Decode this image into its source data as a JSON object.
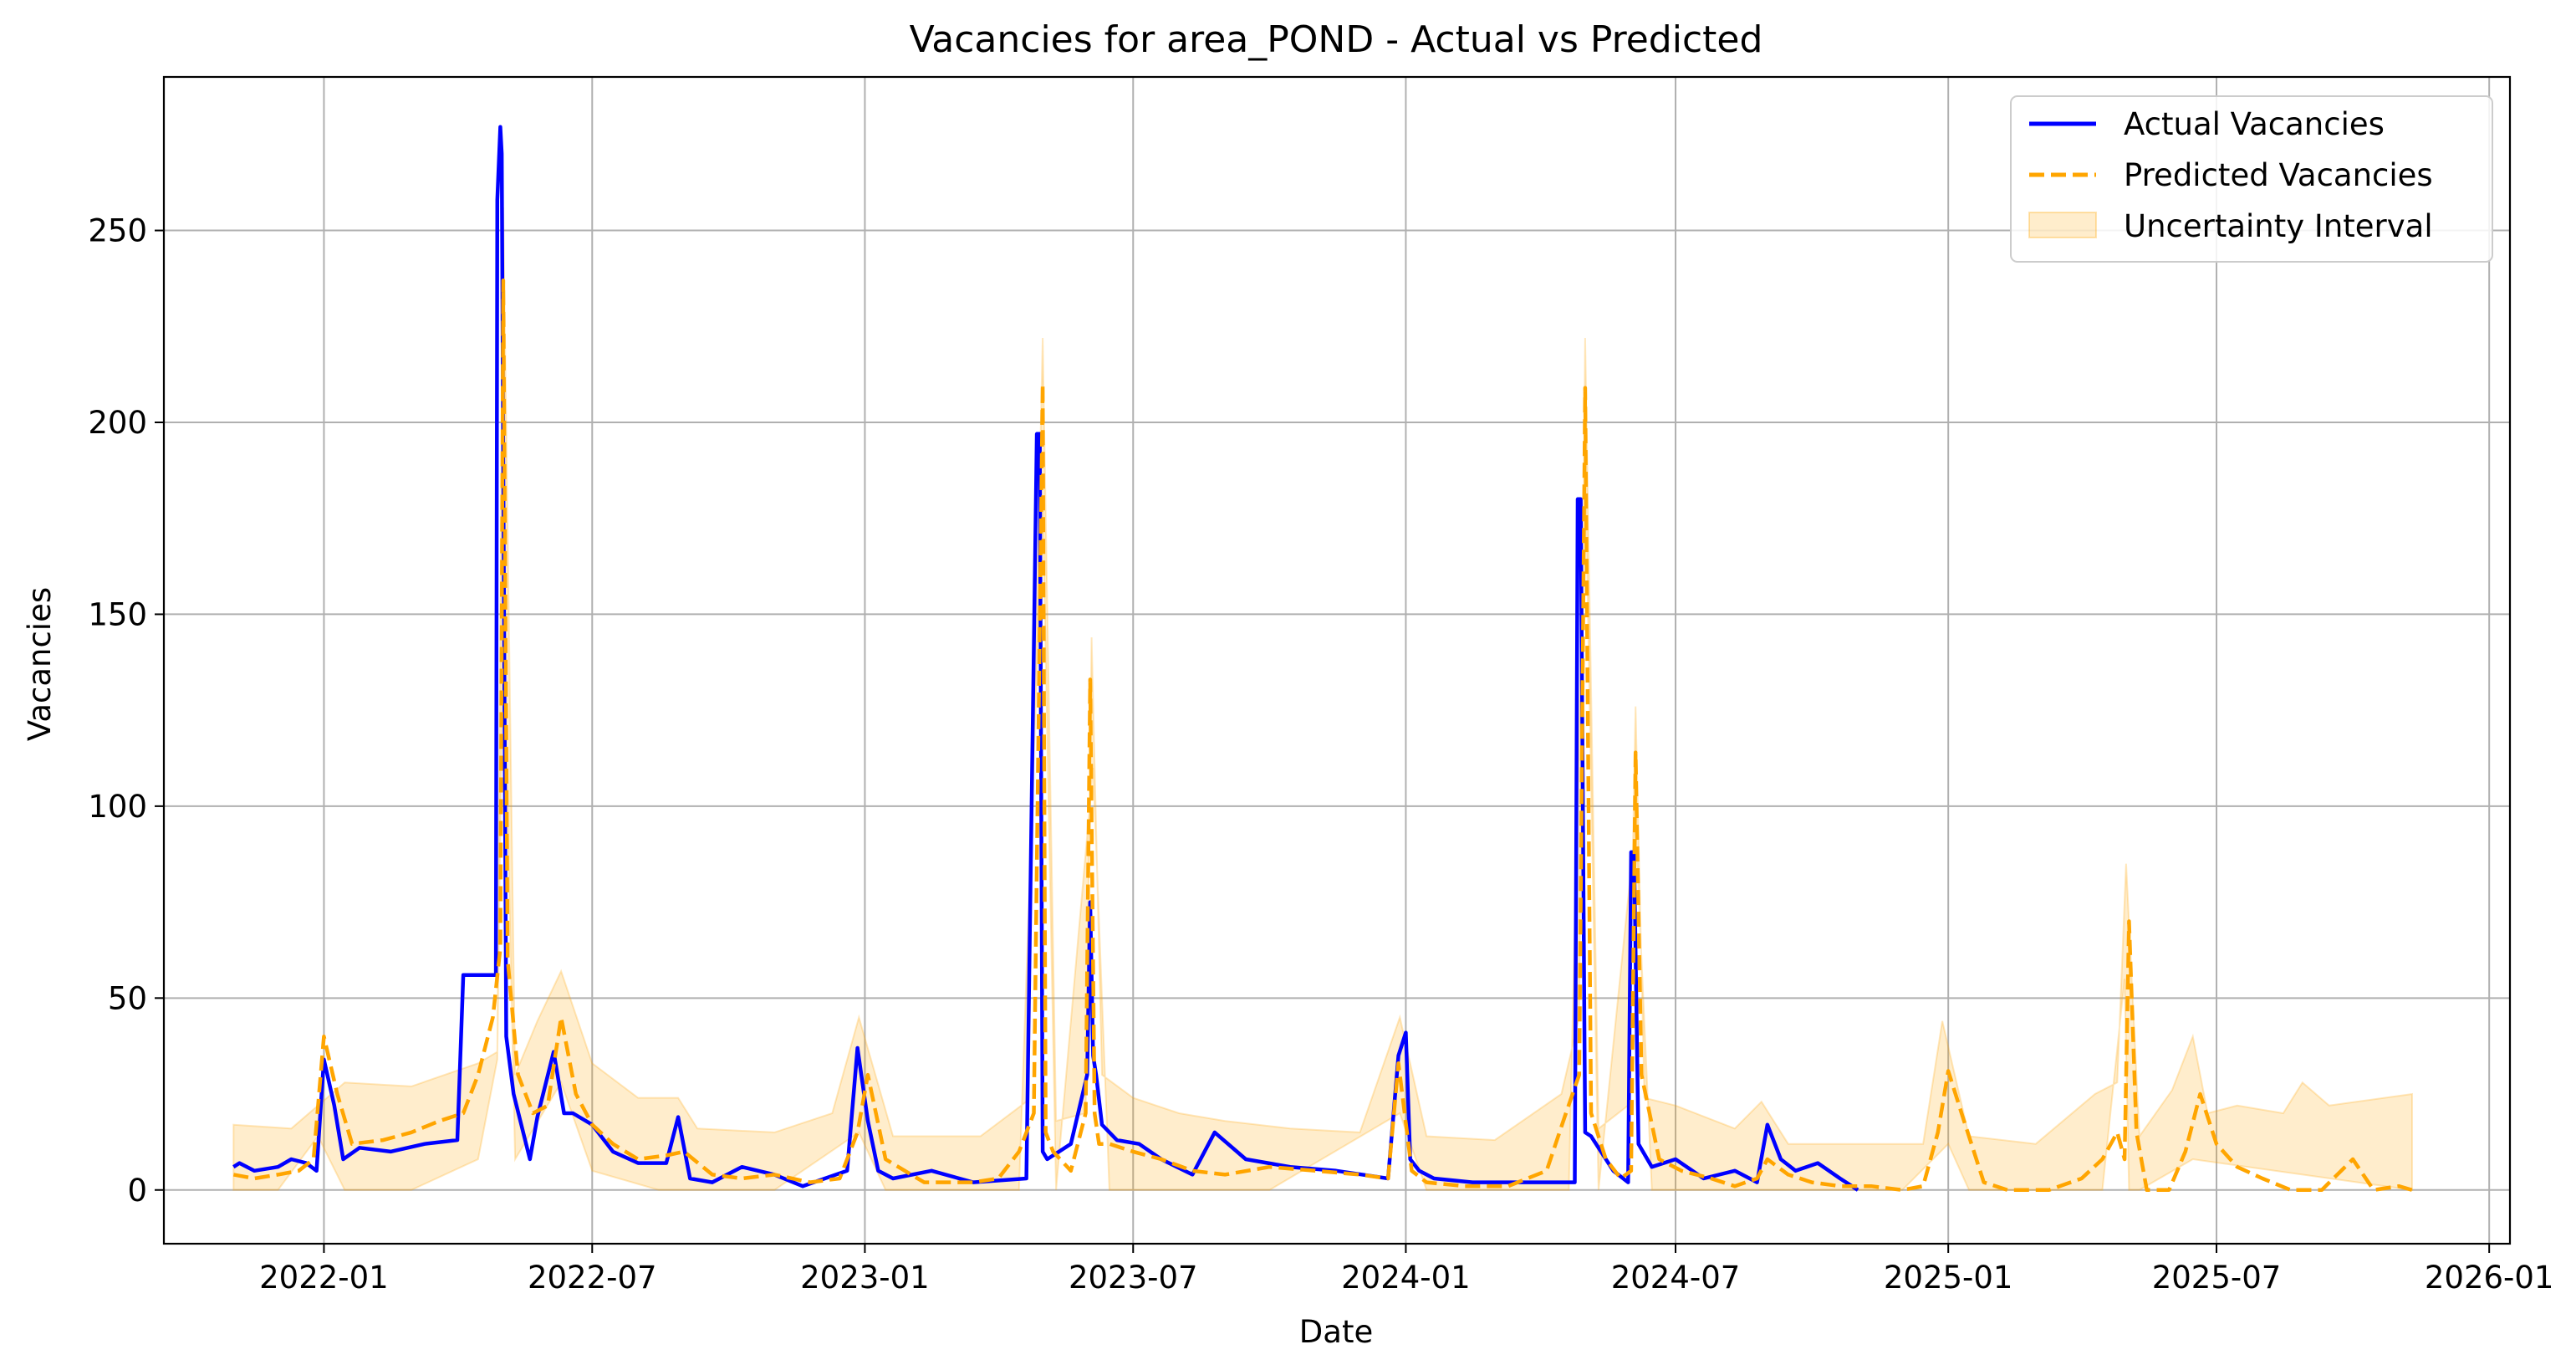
{
  "chart_data": {
    "type": "line",
    "title": "Vacancies for area_POND - Actual vs Predicted",
    "xlabel": "Date",
    "ylabel": "Vacancies",
    "x_axis_type": "date",
    "xlim": [
      "2021-09-15",
      "2026-01-15"
    ],
    "ylim": [
      -14,
      290
    ],
    "grid": true,
    "legend_position": "upper right",
    "x_ticks": [
      "2022-01",
      "2022-07",
      "2023-01",
      "2023-07",
      "2024-01",
      "2024-07",
      "2025-01",
      "2025-07",
      "2026-01"
    ],
    "y_ticks": [
      0,
      50,
      100,
      150,
      200,
      250
    ],
    "colors": {
      "actual": "#0000ff",
      "predicted": "#ffa500",
      "interval": "#ffa500"
    },
    "series": [
      {
        "name": "Actual Vacancies",
        "style": "solid",
        "x": [
          "2021-11-01",
          "2021-11-05",
          "2021-11-15",
          "2021-12-01",
          "2021-12-10",
          "2021-12-20",
          "2021-12-27",
          "2022-01-01",
          "2022-01-08",
          "2022-01-14",
          "2022-01-25",
          "2022-02-15",
          "2022-03-10",
          "2022-04-01",
          "2022-04-05",
          "2022-04-20",
          "2022-04-27",
          "2022-04-28",
          "2022-04-30",
          "2022-05-01",
          "2022-05-02",
          "2022-05-04",
          "2022-05-09",
          "2022-05-20",
          "2022-05-25",
          "2022-06-05",
          "2022-06-12",
          "2022-06-18",
          "2022-07-01",
          "2022-07-15",
          "2022-08-01",
          "2022-08-20",
          "2022-08-28",
          "2022-09-05",
          "2022-09-20",
          "2022-10-10",
          "2022-11-01",
          "2022-11-20",
          "2022-12-20",
          "2022-12-27",
          "2023-01-03",
          "2023-01-10",
          "2023-01-20",
          "2023-02-15",
          "2023-03-15",
          "2023-04-20",
          "2023-04-27",
          "2023-04-29",
          "2023-05-01",
          "2023-05-04",
          "2023-05-20",
          "2023-05-31",
          "2023-06-02",
          "2023-06-04",
          "2023-06-06",
          "2023-06-10",
          "2023-06-20",
          "2023-07-05",
          "2023-07-20",
          "2023-08-10",
          "2023-08-25",
          "2023-09-15",
          "2023-10-15",
          "2023-11-15",
          "2023-12-20",
          "2023-12-27",
          "2024-01-01",
          "2024-01-04",
          "2024-01-10",
          "2024-01-20",
          "2024-02-15",
          "2024-03-10",
          "2024-04-01",
          "2024-04-24",
          "2024-04-26",
          "2024-04-28",
          "2024-05-01",
          "2024-05-05",
          "2024-05-20",
          "2024-05-30",
          "2024-06-01",
          "2024-06-03",
          "2024-06-06",
          "2024-06-15",
          "2024-07-01",
          "2024-07-20",
          "2024-08-10",
          "2024-08-25",
          "2024-09-01",
          "2024-09-10",
          "2024-09-20",
          "2024-10-05",
          "2024-10-20",
          "2024-11-01"
        ],
        "y": [
          6,
          7,
          5,
          6,
          8,
          7,
          5,
          34,
          22,
          8,
          11,
          10,
          12,
          13,
          56,
          56,
          56,
          258,
          277,
          270,
          190,
          40,
          25,
          8,
          19,
          36,
          20,
          20,
          17,
          10,
          7,
          7,
          19,
          3,
          2,
          6,
          4,
          1,
          5,
          37,
          18,
          5,
          3,
          5,
          2,
          3,
          197,
          197,
          10,
          8,
          12,
          30,
          75,
          35,
          30,
          17,
          13,
          12,
          8,
          4,
          15,
          8,
          6,
          5,
          3,
          35,
          41,
          8,
          5,
          3,
          2,
          2,
          2,
          2,
          180,
          180,
          15,
          14,
          5,
          2,
          88,
          88,
          12,
          6,
          8,
          3,
          5,
          2,
          17,
          8,
          5,
          7,
          3,
          0
        ]
      },
      {
        "name": "Predicted Vacancies",
        "style": "dashed",
        "x": [
          "2021-11-01",
          "2021-11-15",
          "2021-12-01",
          "2021-12-15",
          "2021-12-25",
          "2022-01-01",
          "2022-01-10",
          "2022-01-20",
          "2022-02-10",
          "2022-03-01",
          "2022-03-20",
          "2022-04-05",
          "2022-04-15",
          "2022-04-25",
          "2022-04-30",
          "2022-05-02",
          "2022-05-05",
          "2022-05-12",
          "2022-05-22",
          "2022-06-01",
          "2022-06-10",
          "2022-06-20",
          "2022-07-01",
          "2022-07-15",
          "2022-08-01",
          "2022-08-20",
          "2022-09-01",
          "2022-09-20",
          "2022-10-10",
          "2022-11-01",
          "2022-11-25",
          "2022-12-15",
          "2022-12-27",
          "2023-01-03",
          "2023-01-15",
          "2023-02-10",
          "2023-03-15",
          "2023-04-01",
          "2023-04-15",
          "2023-04-25",
          "2023-05-01",
          "2023-05-03",
          "2023-05-08",
          "2023-05-20",
          "2023-05-30",
          "2023-06-02",
          "2023-06-05",
          "2023-06-08",
          "2023-06-15",
          "2023-07-01",
          "2023-07-20",
          "2023-08-10",
          "2023-09-01",
          "2023-10-01",
          "2023-11-01",
          "2023-12-01",
          "2023-12-20",
          "2023-12-27",
          "2024-01-05",
          "2024-01-15",
          "2024-02-10",
          "2024-03-10",
          "2024-04-05",
          "2024-04-18",
          "2024-04-27",
          "2024-05-01",
          "2024-05-05",
          "2024-05-15",
          "2024-05-25",
          "2024-06-01",
          "2024-06-04",
          "2024-06-08",
          "2024-06-20",
          "2024-07-05",
          "2024-07-25",
          "2024-08-10",
          "2024-08-25",
          "2024-09-01",
          "2024-09-15",
          "2024-10-01",
          "2024-10-20",
          "2024-11-10",
          "2024-12-01",
          "2024-12-15",
          "2024-12-25",
          "2025-01-01",
          "2025-01-10",
          "2025-01-25",
          "2025-02-10",
          "2025-03-10",
          "2025-04-01",
          "2025-04-15",
          "2025-04-25",
          "2025-04-30",
          "2025-05-03",
          "2025-05-08",
          "2025-05-15",
          "2025-05-30",
          "2025-06-10",
          "2025-06-20",
          "2025-07-01",
          "2025-07-15",
          "2025-08-01",
          "2025-08-20",
          "2025-09-01",
          "2025-09-10",
          "2025-10-01",
          "2025-10-15",
          "2025-11-01",
          "2025-11-10"
        ],
        "y": [
          4,
          3,
          4,
          5,
          8,
          40,
          25,
          12,
          13,
          15,
          18,
          20,
          30,
          45,
          63,
          237,
          60,
          30,
          20,
          22,
          45,
          25,
          17,
          12,
          8,
          9,
          10,
          4,
          3,
          4,
          2,
          3,
          15,
          30,
          8,
          2,
          2,
          3,
          10,
          20,
          210,
          15,
          10,
          5,
          20,
          133,
          20,
          12,
          12,
          10,
          8,
          5,
          4,
          6,
          5,
          4,
          3,
          33,
          5,
          2,
          1,
          1,
          5,
          20,
          30,
          209,
          20,
          8,
          3,
          5,
          114,
          30,
          8,
          5,
          3,
          1,
          3,
          8,
          4,
          2,
          1,
          1,
          0,
          1,
          15,
          31,
          20,
          2,
          0,
          0,
          3,
          8,
          15,
          8,
          70,
          15,
          0,
          0,
          10,
          25,
          12,
          6,
          3,
          0,
          0,
          0,
          8,
          0,
          1,
          0
        ]
      }
    ],
    "uncertainty_interval": {
      "name": "Uncertainty Interval",
      "upper": {
        "x": [
          "2021-11-01",
          "2021-12-10",
          "2021-12-28",
          "2022-01-15",
          "2022-03-01",
          "2022-04-15",
          "2022-04-28",
          "2022-05-02",
          "2022-05-10",
          "2022-05-25",
          "2022-06-10",
          "2022-07-01",
          "2022-08-01",
          "2022-08-28",
          "2022-09-10",
          "2022-11-01",
          "2022-12-10",
          "2022-12-28",
          "2023-01-20",
          "2023-03-20",
          "2023-04-20",
          "2023-05-01",
          "2023-05-10",
          "2023-05-30",
          "2023-06-03",
          "2023-06-10",
          "2023-07-01",
          "2023-08-01",
          "2023-09-01",
          "2023-10-15",
          "2023-12-01",
          "2023-12-28",
          "2024-01-15",
          "2024-03-01",
          "2024-04-15",
          "2024-04-27",
          "2024-05-01",
          "2024-05-10",
          "2024-05-30",
          "2024-06-04",
          "2024-06-10",
          "2024-07-01",
          "2024-08-10",
          "2024-08-28",
          "2024-09-15",
          "2024-11-15",
          "2024-12-15",
          "2024-12-28",
          "2025-01-15",
          "2025-03-01",
          "2025-04-10",
          "2025-04-25",
          "2025-05-01",
          "2025-05-10",
          "2025-06-01",
          "2025-06-15",
          "2025-06-25",
          "2025-07-15",
          "2025-08-15",
          "2025-08-28",
          "2025-09-15",
          "2025-11-10"
        ],
        "y": [
          17,
          16,
          22,
          28,
          27,
          33,
          36,
          256,
          30,
          44,
          57,
          33,
          24,
          24,
          16,
          15,
          20,
          45,
          14,
          14,
          23,
          222,
          18,
          20,
          144,
          30,
          24,
          20,
          18,
          16,
          15,
          45,
          14,
          13,
          25,
          45,
          222,
          16,
          22,
          126,
          24,
          22,
          16,
          23,
          12,
          12,
          12,
          44,
          14,
          12,
          25,
          28,
          85,
          14,
          26,
          40,
          20,
          22,
          20,
          28,
          22,
          25
        ]
      },
      "lower": {
        "x": [
          "2021-11-01",
          "2021-12-01",
          "2021-12-28",
          "2022-01-15",
          "2022-03-01",
          "2022-04-15",
          "2022-04-28",
          "2022-05-02",
          "2022-05-10",
          "2022-06-10",
          "2022-07-01",
          "2022-08-15",
          "2022-09-15",
          "2022-11-01",
          "2022-12-28",
          "2023-01-15",
          "2023-04-15",
          "2023-05-01",
          "2023-05-10",
          "2023-06-04",
          "2023-06-15",
          "2023-08-01",
          "2023-10-01",
          "2023-12-28",
          "2024-01-15",
          "2024-04-20",
          "2024-05-01",
          "2024-05-10",
          "2024-06-04",
          "2024-06-15",
          "2024-08-01",
          "2024-10-01",
          "2024-12-01",
          "2025-01-01",
          "2025-01-15",
          "2025-04-15",
          "2025-04-30",
          "2025-05-03",
          "2025-05-10",
          "2025-06-15",
          "2025-11-10"
        ],
        "y": [
          0,
          0,
          14,
          0,
          0,
          8,
          34,
          150,
          8,
          28,
          5,
          0,
          0,
          0,
          15,
          0,
          0,
          180,
          0,
          110,
          0,
          0,
          0,
          20,
          0,
          0,
          190,
          0,
          95,
          0,
          0,
          0,
          0,
          12,
          0,
          0,
          55,
          0,
          0,
          8,
          0
        ]
      }
    }
  }
}
